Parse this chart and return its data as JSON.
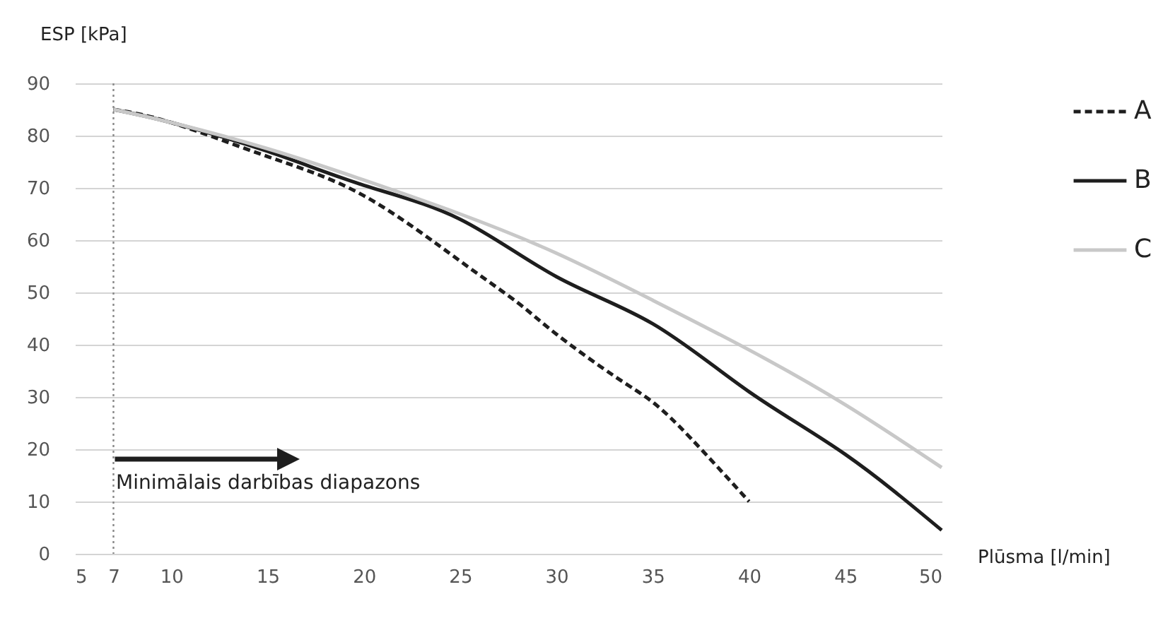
{
  "chart_data": {
    "type": "line",
    "xlabel": "Plūsma [l/min]",
    "ylabel": "ESP [kPa]",
    "xlim": [
      5,
      50
    ],
    "xticks": [
      5,
      7,
      10,
      15,
      20,
      25,
      30,
      35,
      40,
      45,
      50
    ],
    "ylim": [
      0,
      90
    ],
    "yticks": [
      0,
      10,
      20,
      30,
      40,
      50,
      60,
      70,
      80,
      90
    ],
    "grid": "y",
    "legend": "right",
    "series": [
      {
        "name": "A",
        "color": "#1e1e1e",
        "line_style": "dashed",
        "x": [
          7,
          10,
          15,
          20,
          25,
          28,
          30,
          33,
          35,
          37,
          40
        ],
        "values": [
          85,
          82.5,
          76,
          68.5,
          56,
          48,
          42,
          34,
          29,
          22,
          10
        ]
      },
      {
        "name": "B",
        "color": "#1e1e1e",
        "line_style": "solid",
        "x": [
          7,
          10,
          15,
          20,
          25,
          30,
          35,
          40,
          45,
          50
        ],
        "values": [
          85,
          82.5,
          77,
          70.5,
          64,
          53,
          44,
          31,
          19,
          4.5
        ]
      },
      {
        "name": "C",
        "color": "#c8c8c8",
        "line_style": "solid",
        "x": [
          7,
          10,
          15,
          20,
          25,
          30,
          35,
          40,
          45,
          50
        ],
        "values": [
          85,
          82.5,
          77.5,
          71.5,
          65,
          57.5,
          48.5,
          39,
          28.5,
          16.5
        ]
      }
    ],
    "ref_lines": [
      {
        "axis": "x",
        "value": 7,
        "color": "#888888",
        "line_style": "dotted"
      }
    ],
    "annotations": [
      "Minimālais darbības diapazons"
    ]
  }
}
